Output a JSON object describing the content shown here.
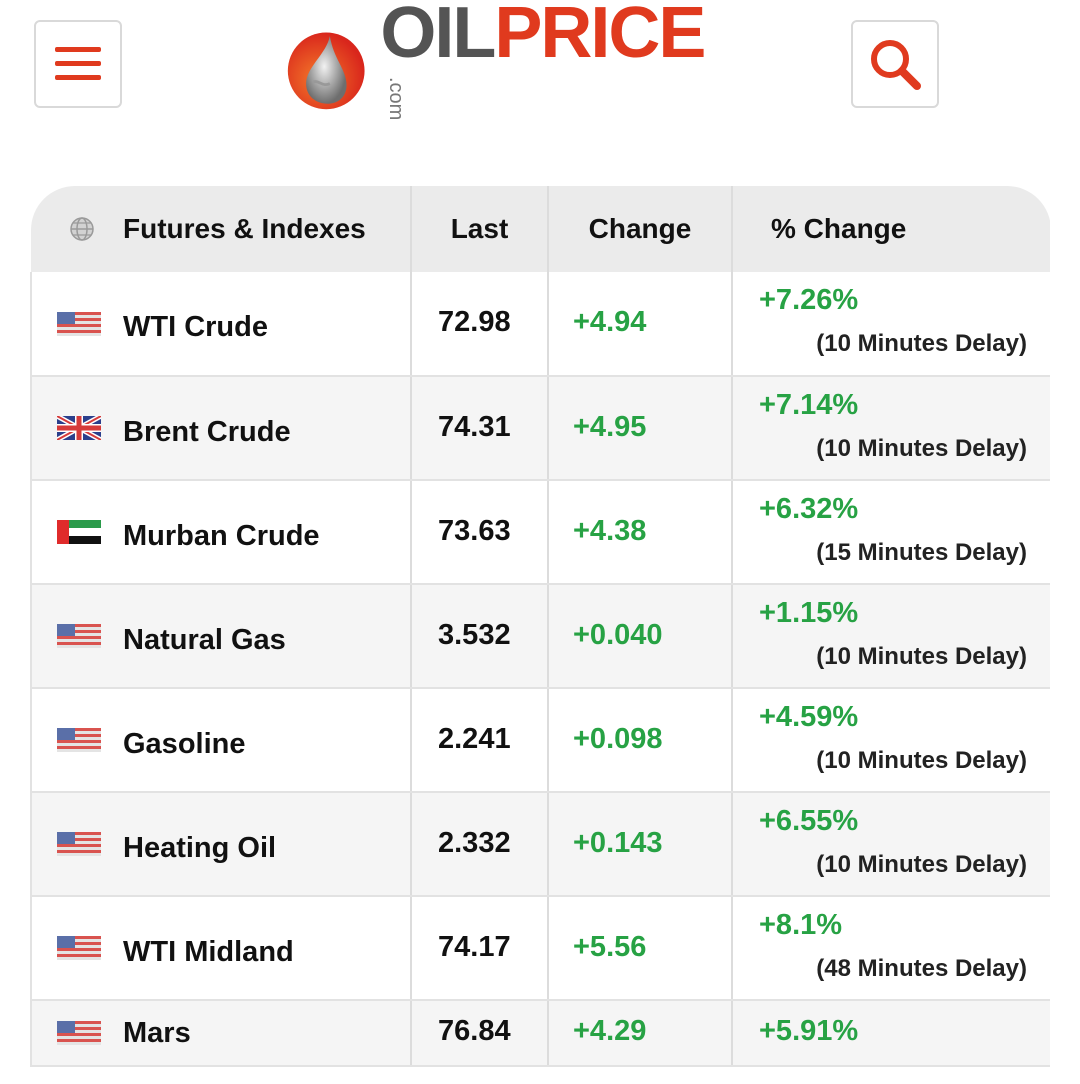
{
  "header": {
    "logo_oil": "OIL",
    "logo_price": "PRICE",
    "logo_com": ".com"
  },
  "table": {
    "headers": {
      "name": "Futures & Indexes",
      "last": "Last",
      "change": "Change",
      "pct_change": "% Change"
    },
    "rows": [
      {
        "flag": "us-flag",
        "name": "WTI Crude",
        "last": "72.98",
        "change": "+4.94",
        "pct": "+7.26%",
        "delay": "(10 Minutes Delay)"
      },
      {
        "flag": "uk-flag",
        "name": "Brent Crude",
        "last": "74.31",
        "change": "+4.95",
        "pct": "+7.14%",
        "delay": "(10 Minutes Delay)"
      },
      {
        "flag": "uae-flag",
        "name": "Murban Crude",
        "last": "73.63",
        "change": "+4.38",
        "pct": "+6.32%",
        "delay": "(15 Minutes Delay)"
      },
      {
        "flag": "us-flag",
        "name": "Natural Gas",
        "last": "3.532",
        "change": "+0.040",
        "pct": "+1.15%",
        "delay": "(10 Minutes Delay)"
      },
      {
        "flag": "us-flag",
        "name": "Gasoline",
        "last": "2.241",
        "change": "+0.098",
        "pct": "+4.59%",
        "delay": "(10 Minutes Delay)"
      },
      {
        "flag": "us-flag",
        "name": "Heating Oil",
        "last": "2.332",
        "change": "+0.143",
        "pct": "+6.55%",
        "delay": "(10 Minutes Delay)"
      },
      {
        "flag": "us-flag",
        "name": "WTI Midland",
        "last": "74.17",
        "change": "+5.56",
        "pct": "+8.1%",
        "delay": "(48 Minutes Delay)"
      },
      {
        "flag": "us-flag",
        "name": "Mars",
        "last": "76.84",
        "change": "+4.29",
        "pct": "+5.91%",
        "delay": ""
      }
    ]
  },
  "colors": {
    "brand_red": "#e03a1e",
    "positive_green": "#27a244",
    "header_bg": "#ebebeb"
  }
}
